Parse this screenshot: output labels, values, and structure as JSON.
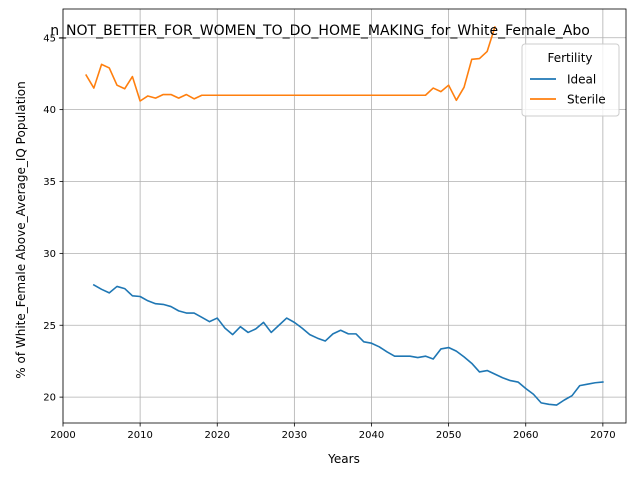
{
  "chart_data": {
    "type": "line",
    "title": "n_NOT_BETTER_FOR_WOMEN_TO_DO_HOME_MAKING_for_White_Female_Abo",
    "xlabel": "Years",
    "ylabel": "% of White_Female Above_Average_IQ Population",
    "xlim": [
      2000,
      2073
    ],
    "ylim": [
      18.2,
      47.0
    ],
    "xticks": [
      2000,
      2010,
      2020,
      2030,
      2040,
      2050,
      2060,
      2070
    ],
    "yticks": [
      20,
      25,
      30,
      35,
      40,
      45
    ],
    "grid": true,
    "legend": {
      "title": "Fertility",
      "placement": "top-right"
    },
    "series": [
      {
        "name": "Ideal",
        "color": "#1f77b4",
        "x": [
          2004,
          2005,
          2006,
          2007,
          2008,
          2009,
          2010,
          2011,
          2012,
          2013,
          2014,
          2015,
          2016,
          2017,
          2018,
          2019,
          2020,
          2021,
          2022,
          2023,
          2024,
          2025,
          2026,
          2027,
          2028,
          2029,
          2030,
          2031,
          2032,
          2033,
          2034,
          2035,
          2036,
          2037,
          2038,
          2039,
          2040,
          2041,
          2042,
          2043,
          2044,
          2045,
          2046,
          2047,
          2048,
          2049,
          2050,
          2051,
          2052,
          2053,
          2054,
          2055,
          2056,
          2057,
          2058,
          2059,
          2060,
          2061,
          2062,
          2063,
          2064,
          2065,
          2066,
          2067,
          2068,
          2069,
          2070
        ],
        "values": [
          27.8,
          27.5,
          27.25,
          27.7,
          27.55,
          27.05,
          27.0,
          26.7,
          26.5,
          26.45,
          26.3,
          26.0,
          25.85,
          25.85,
          25.55,
          25.25,
          25.5,
          24.8,
          24.35,
          24.9,
          24.5,
          24.75,
          25.2,
          24.5,
          25.0,
          25.5,
          25.2,
          24.8,
          24.35,
          24.1,
          23.9,
          24.4,
          24.65,
          24.4,
          24.4,
          23.85,
          23.75,
          23.5,
          23.15,
          22.85,
          22.85,
          22.85,
          22.75,
          22.85,
          22.65,
          23.35,
          23.45,
          23.2,
          22.8,
          22.35,
          21.75,
          21.85,
          21.6,
          21.35,
          21.15,
          21.05,
          20.6,
          20.2,
          19.6,
          19.5,
          19.45,
          19.8,
          20.1,
          20.8,
          20.9,
          21.0,
          21.05
        ]
      },
      {
        "name": "Sterile",
        "color": "#ff7f0e",
        "x": [
          2003,
          2004,
          2005,
          2006,
          2007,
          2008,
          2009,
          2010,
          2011,
          2012,
          2013,
          2014,
          2015,
          2016,
          2017,
          2018,
          2019,
          2020,
          2021,
          2022,
          2023,
          2024,
          2025,
          2026,
          2027,
          2028,
          2029,
          2030,
          2031,
          2032,
          2033,
          2034,
          2035,
          2036,
          2037,
          2038,
          2039,
          2040,
          2041,
          2042,
          2043,
          2044,
          2045,
          2046,
          2047,
          2048,
          2049,
          2050,
          2051,
          2052,
          2053,
          2054,
          2055,
          2056
        ],
        "values": [
          42.4,
          41.5,
          43.15,
          42.9,
          41.7,
          41.45,
          42.3,
          40.6,
          40.95,
          40.8,
          41.05,
          41.05,
          40.8,
          41.05,
          40.75,
          41.0,
          41.0,
          41.0,
          41.0,
          41.0,
          41.0,
          41.0,
          41.0,
          41.0,
          41.0,
          41.0,
          41.0,
          41.0,
          41.0,
          41.0,
          41.0,
          41.0,
          41.0,
          41.0,
          41.0,
          41.0,
          41.0,
          41.0,
          41.0,
          41.0,
          41.0,
          41.0,
          41.0,
          41.0,
          41.0,
          41.5,
          41.25,
          41.7,
          40.65,
          41.55,
          43.5,
          43.55,
          44.05,
          45.75
        ]
      }
    ]
  }
}
